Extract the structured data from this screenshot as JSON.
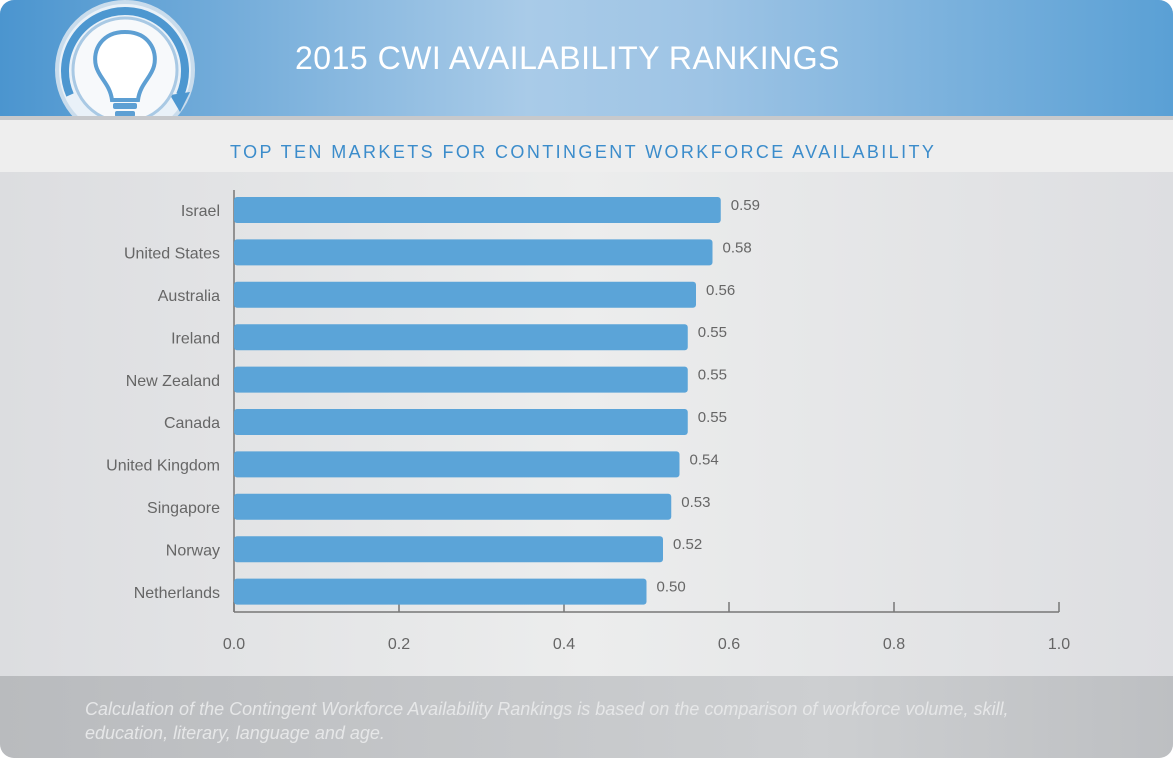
{
  "header": {
    "title": "2015 CWI AVAILABILITY RANKINGS"
  },
  "chart_data": {
    "type": "bar",
    "subtitle": "TOP TEN MARKETS FOR CONTINGENT WORKFORCE AVAILABILITY",
    "categories": [
      "Israel",
      "United States",
      "Australia",
      "Ireland",
      "New Zealand",
      "Canada",
      "United Kingdom",
      "Singapore",
      "Norway",
      "Netherlands"
    ],
    "values": [
      0.59,
      0.58,
      0.56,
      0.55,
      0.55,
      0.55,
      0.54,
      0.53,
      0.52,
      0.5
    ],
    "value_labels": [
      "0.59",
      "0.58",
      "0.56",
      "0.55",
      "0.55",
      "0.55",
      "0.54",
      "0.53",
      "0.52",
      "0.50"
    ],
    "color": "#5ba4d8",
    "xlim": [
      0,
      1
    ],
    "xticks": [
      {
        "value": 0,
        "label": "0.0"
      },
      0.2,
      0.4,
      0.6,
      0.8,
      {
        "value": 1,
        "label": "1.0"
      }
    ],
    "note": "Calculation of the Contingent Workforce Availability Rankings is based on the comparison of workforce volume, skill, education, literary, language and age."
  }
}
